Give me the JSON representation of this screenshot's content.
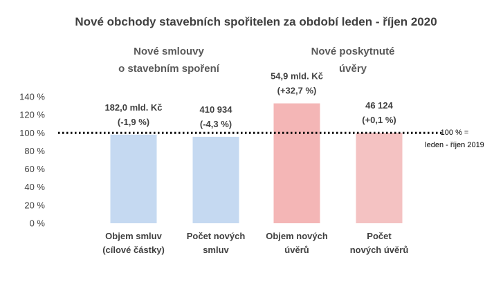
{
  "chart_data": {
    "type": "bar",
    "title": "Nové obchody stavebních spořitelen za období leden - říjen 2020",
    "groups": [
      {
        "label_lines": [
          "Nové smlouvy",
          "o stavebním spoření"
        ]
      },
      {
        "label_lines": [
          "Nové poskytnuté",
          "úvěry"
        ]
      }
    ],
    "categories": [
      {
        "lines": [
          "Objem smluv",
          "(cílové částky)"
        ]
      },
      {
        "lines": [
          "Počet  nových",
          "smluv"
        ]
      },
      {
        "lines": [
          "Objem nových",
          "úvěrů"
        ]
      },
      {
        "lines": [
          "Počet",
          "nových úvěrů"
        ]
      }
    ],
    "values": [
      98.1,
      95.7,
      132.7,
      100.1
    ],
    "data_labels": [
      [
        "182,0 mld. Kč",
        "(-1,9 %)"
      ],
      [
        "410 934",
        "(-4,3 %)"
      ],
      [
        "54,9 mld. Kč",
        "(+32,7 %)"
      ],
      [
        "46 124",
        "(+0,1 %)"
      ]
    ],
    "bar_colors": [
      "#c5d9f1",
      "#c5d9f1",
      "#f4b6b6",
      "#f4c2c2"
    ],
    "ylim": [
      0,
      140
    ],
    "ytick_values": [
      0,
      20,
      40,
      60,
      80,
      100,
      120,
      140
    ],
    "ytick_labels": [
      "0 %",
      "20 %",
      "40 %",
      "60 %",
      "80 %",
      "100 %",
      "120 %",
      "140 %"
    ],
    "reference_line": {
      "value": 100,
      "label_lines": [
        "100 % =",
        "leden - říjen 2019"
      ],
      "style": "dotted"
    },
    "grid": false,
    "legend": "none"
  }
}
